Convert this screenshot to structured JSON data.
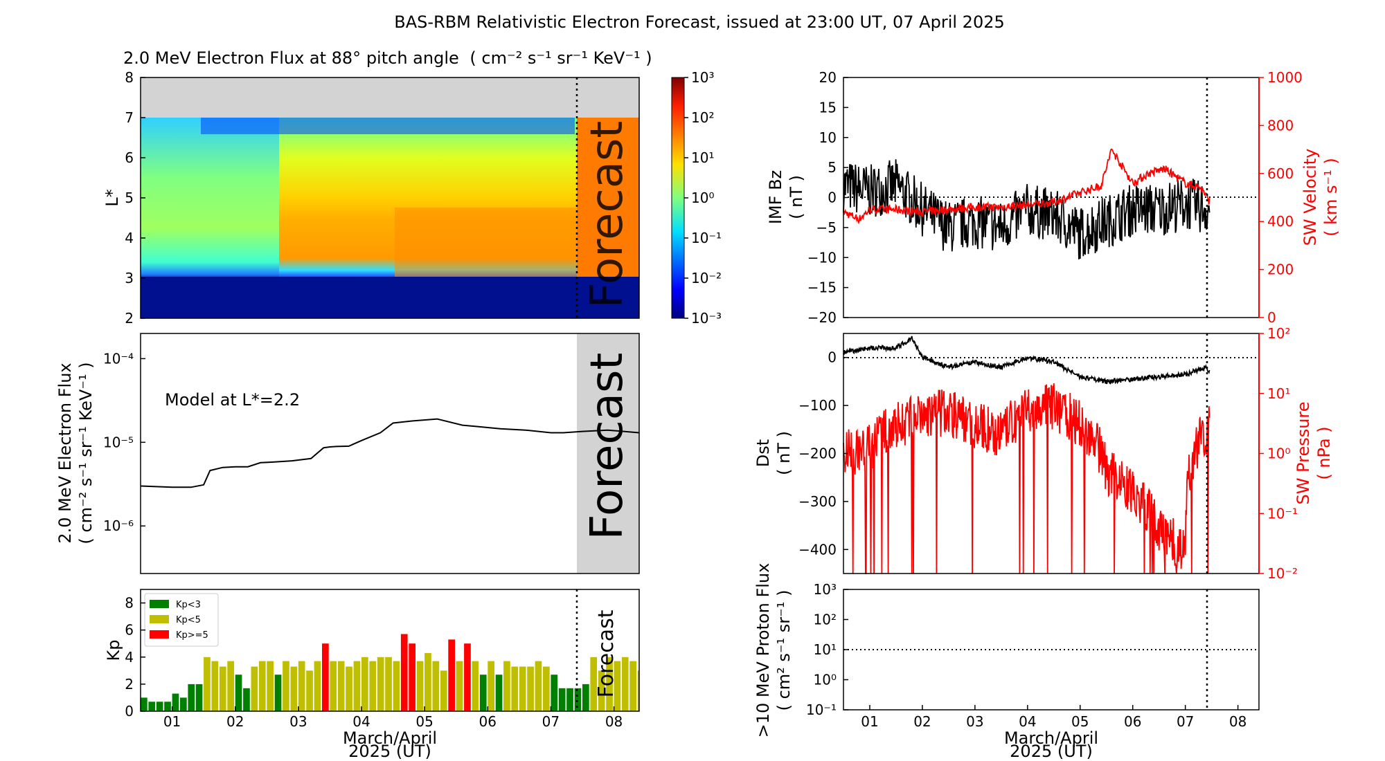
{
  "figure_title": "BAS-RBM Relativistic Electron Forecast, issued at 23:00 UT, 07 April 2025",
  "forecast_label": "Forecast",
  "x_axis_label_line1": "March/April",
  "x_axis_label_line2": "2025 (UT)",
  "x_ticks": [
    "01",
    "02",
    "03",
    "04",
    "05",
    "06",
    "07",
    "08"
  ],
  "x_range_days": [
    -0.5,
    7.4
  ],
  "issue_time_days": 6.46,
  "colors": {
    "black": "#000000",
    "red": "#ff0000",
    "kp_green": "#008000",
    "kp_yellow": "#bfbf00",
    "kp_red": "#ff0000",
    "grey": "#d3d3d3"
  },
  "chart_data": [
    {
      "id": "flux-lstar",
      "type": "heatmap",
      "title": "2.0 MeV Electron Flux at 88° pitch angle",
      "title_units": "( cm⁻² s⁻¹ sr⁻¹ KeV⁻¹ )",
      "ylabel": "L*",
      "ylim": [
        2,
        8
      ],
      "yticks": [
        "2",
        "3",
        "4",
        "5",
        "6",
        "7",
        "8"
      ],
      "colorbar": {
        "scale": "log",
        "ticks": [
          "10⁻³",
          "10⁻²",
          "10⁻¹",
          "10⁰",
          "10¹",
          "10²",
          "10³"
        ]
      },
      "note": "no data above L*=7 (grey)"
    },
    {
      "id": "flux-timeseries",
      "type": "line",
      "ylabel_line1": "2.0 MeV Electron Flux",
      "ylabel_line2": "( cm⁻² s⁻¹ sr⁻¹ KeV⁻¹ )",
      "annotation": "Model at L*=2.2",
      "yscale": "log",
      "yticks": [
        "10⁻⁶",
        "10⁻⁵",
        "10⁻⁴"
      ],
      "x": [
        -0.5,
        0,
        0.3,
        0.5,
        0.6,
        0.8,
        1,
        1.2,
        1.4,
        1.6,
        1.9,
        2.2,
        2.4,
        2.5,
        2.6,
        2.8,
        3,
        3.3,
        3.5,
        3.8,
        4.2,
        4.6,
        4.8,
        5.0,
        5.2,
        5.6,
        6.0,
        6.2,
        6.5,
        6.9,
        7.4
      ],
      "y": [
        3e-06,
        2.9e-06,
        2.9e-06,
        3.1e-06,
        4.6e-06,
        5e-06,
        5.1e-06,
        5.1e-06,
        5.7e-06,
        5.8e-06,
        6e-06,
        6.4e-06,
        8.6e-06,
        8.8e-06,
        8.9e-06,
        9e-06,
        1.05e-05,
        1.3e-05,
        1.7e-05,
        1.8e-05,
        1.9e-05,
        1.6e-05,
        1.55e-05,
        1.5e-05,
        1.45e-05,
        1.4e-05,
        1.3e-05,
        1.3e-05,
        1.35e-05,
        1.4e-05,
        1.3e-05
      ]
    },
    {
      "id": "kp",
      "type": "bar",
      "ylabel": "Kp",
      "ylim": [
        0,
        9
      ],
      "yticks": [
        "0",
        "2",
        "4",
        "6",
        "8"
      ],
      "legend": [
        "Kp<3",
        "Kp<5",
        "Kp>=5"
      ],
      "legend_position": "top-left",
      "bar_width_days": 0.125,
      "values": [
        1.0,
        0.7,
        0.7,
        0.7,
        1.3,
        1.0,
        2.0,
        2.0,
        4.0,
        3.7,
        3.3,
        3.7,
        2.7,
        1.7,
        3.3,
        3.7,
        3.7,
        2.7,
        3.7,
        3.3,
        3.7,
        3.0,
        3.7,
        5.0,
        3.7,
        3.7,
        3.3,
        3.7,
        4.0,
        3.7,
        4.0,
        4.0,
        3.7,
        5.7,
        5.0,
        3.7,
        4.3,
        3.7,
        3.0,
        5.3,
        3.7,
        5.0,
        3.7,
        2.7,
        3.7,
        2.7,
        3.7,
        3.3,
        3.3,
        3.3,
        3.7,
        3.3,
        2.7,
        1.7,
        1.7,
        1.7,
        2.0,
        4.0,
        3.0,
        4.0,
        3.7,
        4.0,
        3.7,
        3.0,
        4.0,
        3.0,
        2.0,
        2.0
      ]
    },
    {
      "id": "imf-sw-velocity",
      "type": "line",
      "ylabel_left_line1": "IMF Bz",
      "ylabel_left_line2": "( nT )",
      "ylim_left": [
        -20,
        20
      ],
      "yticks_left": [
        "−20",
        "−15",
        "−10",
        "−5",
        "0",
        "5",
        "10",
        "15",
        "20"
      ],
      "ylabel_right_line1": "SW Velocity",
      "ylabel_right_line2": "( km s⁻¹ )",
      "ylim_right": [
        0,
        1000
      ],
      "yticks_right": [
        "0",
        "200",
        "400",
        "600",
        "800",
        "1000"
      ],
      "series": [
        {
          "name": "IMF Bz",
          "color": "#000000",
          "x": [
            -0.5,
            0,
            0.5,
            1,
            1.5,
            2,
            2.5,
            3,
            3.5,
            4,
            4.5,
            5,
            5.5,
            6,
            6.5
          ],
          "y": [
            2,
            1,
            2,
            -2,
            -5,
            -4,
            -5,
            -2,
            -3,
            -6,
            -4,
            -2,
            -2,
            -1,
            -2
          ]
        },
        {
          "name": "SW Velocity",
          "color": "#ff0000",
          "x": [
            -0.5,
            -0.2,
            0,
            0.5,
            1,
            1.5,
            2,
            2.5,
            3,
            3.5,
            4,
            4.4,
            4.6,
            5,
            5.3,
            5.6,
            6,
            6.3,
            6.5
          ],
          "y": [
            440,
            410,
            450,
            450,
            440,
            450,
            460,
            460,
            470,
            480,
            520,
            550,
            700,
            560,
            600,
            620,
            560,
            540,
            470
          ]
        }
      ]
    },
    {
      "id": "dst-sw-pressure",
      "type": "line",
      "ylabel_left_line1": "Dst",
      "ylabel_left_line2": "( nT )",
      "ylim_left": [
        -450,
        50
      ],
      "yticks_left": [
        "−400",
        "−300",
        "−200",
        "−100",
        "0"
      ],
      "ylabel_right_line1": "SW Pressure",
      "ylabel_right_line2": "( nPa )",
      "yscale_right": "log",
      "yticks_right": [
        "10⁻²",
        "10⁻¹",
        "10⁰",
        "10¹",
        "10²"
      ],
      "series": [
        {
          "name": "Dst",
          "color": "#000000",
          "x": [
            -0.5,
            0,
            0.5,
            0.8,
            1,
            1.5,
            2,
            2.5,
            3,
            3.5,
            4,
            4.5,
            5,
            5.5,
            6,
            6.4,
            6.5
          ],
          "y": [
            10,
            20,
            20,
            40,
            0,
            -20,
            -10,
            -20,
            0,
            -10,
            -40,
            -50,
            -45,
            -40,
            -35,
            -20,
            -35
          ]
        },
        {
          "name": "SW Pressure",
          "color": "#ff0000",
          "x": [
            -0.5,
            0,
            0.5,
            1,
            1.5,
            2,
            2.5,
            3,
            3.5,
            4,
            4.5,
            5,
            5.5,
            6,
            6.5
          ],
          "y": [
            1.0,
            1.2,
            3.0,
            4.0,
            5.0,
            3.0,
            2.0,
            5.0,
            6.0,
            3.0,
            0.5,
            0.2,
            0.05,
            0.02,
            3.0
          ]
        }
      ]
    },
    {
      "id": "proton-flux",
      "type": "line",
      "ylabel_line1": ">10 MeV Proton Flux",
      "ylabel_line2": "( cm² s⁻¹ sr⁻¹ )",
      "yscale": "log",
      "yticks": [
        "10⁻¹",
        "10⁰",
        "10¹",
        "10²",
        "10³"
      ],
      "threshold": 10
    }
  ]
}
